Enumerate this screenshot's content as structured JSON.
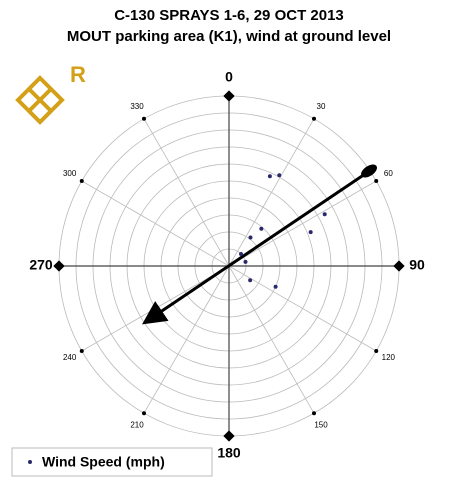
{
  "chart_data": {
    "type": "polar-scatter",
    "title": "C-130 SPRAYS 1-6, 29 OCT 2013",
    "subtitle": "MOUT parking area (K1), wind at ground level",
    "logo": "R",
    "series": [
      {
        "name": "Wind Speed (mph)",
        "color": "#2a2a6a",
        "theta": [
          24.5,
          29,
          61.6,
          67.5,
          41,
          37,
          45,
          76,
          114,
          124
        ],
        "values": [
          5.8,
          6.1,
          6.4,
          5.2,
          2.9,
          2.1,
          1.0,
          1.0,
          3.0,
          1.5
        ]
      }
    ],
    "rlim": [
      0,
      10
    ],
    "rticks": [
      1,
      2,
      3,
      4,
      5,
      6,
      7,
      8,
      9,
      10
    ],
    "thetaticks": [
      0,
      30,
      60,
      90,
      120,
      150,
      180,
      210,
      240,
      270,
      300,
      330
    ],
    "grid": true
  }
}
